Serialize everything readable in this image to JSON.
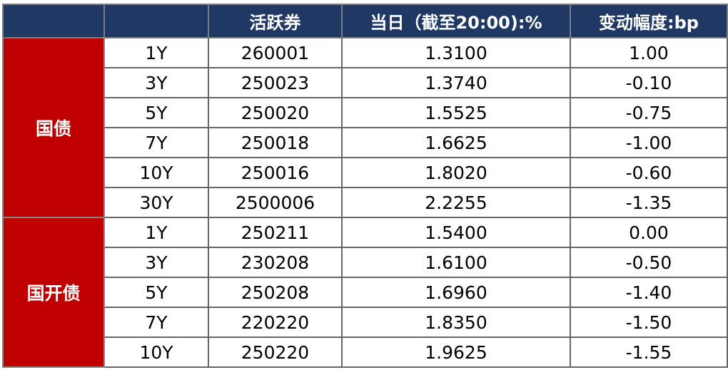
{
  "header": [
    "",
    "",
    "活跃券",
    "当日（截至20:00):%",
    "变动幅度:bp"
  ],
  "groups": [
    {
      "name": "国债",
      "rows": [
        [
          "1Y",
          "260001",
          "1.3100",
          "1.00"
        ],
        [
          "3Y",
          "250023",
          "1.3740",
          "-0.10"
        ],
        [
          "5Y",
          "250020",
          "1.5525",
          "-0.75"
        ],
        [
          "7Y",
          "250018",
          "1.6625",
          "-1.00"
        ],
        [
          "10Y",
          "250016",
          "1.8020",
          "-0.60"
        ],
        [
          "30Y",
          "2500006",
          "2.2255",
          "-1.35"
        ]
      ]
    },
    {
      "name": "国开债",
      "rows": [
        [
          "1Y",
          "250211",
          "1.5400",
          "0.00"
        ],
        [
          "3Y",
          "230208",
          "1.6100",
          "-0.50"
        ],
        [
          "5Y",
          "250208",
          "1.6960",
          "-1.40"
        ],
        [
          "7Y",
          "220220",
          "1.8350",
          "-1.50"
        ],
        [
          "10Y",
          "250220",
          "1.9625",
          "-1.55"
        ]
      ]
    }
  ],
  "colors": {
    "header_bg": "#1f3864",
    "group_bg": "#c00000"
  }
}
